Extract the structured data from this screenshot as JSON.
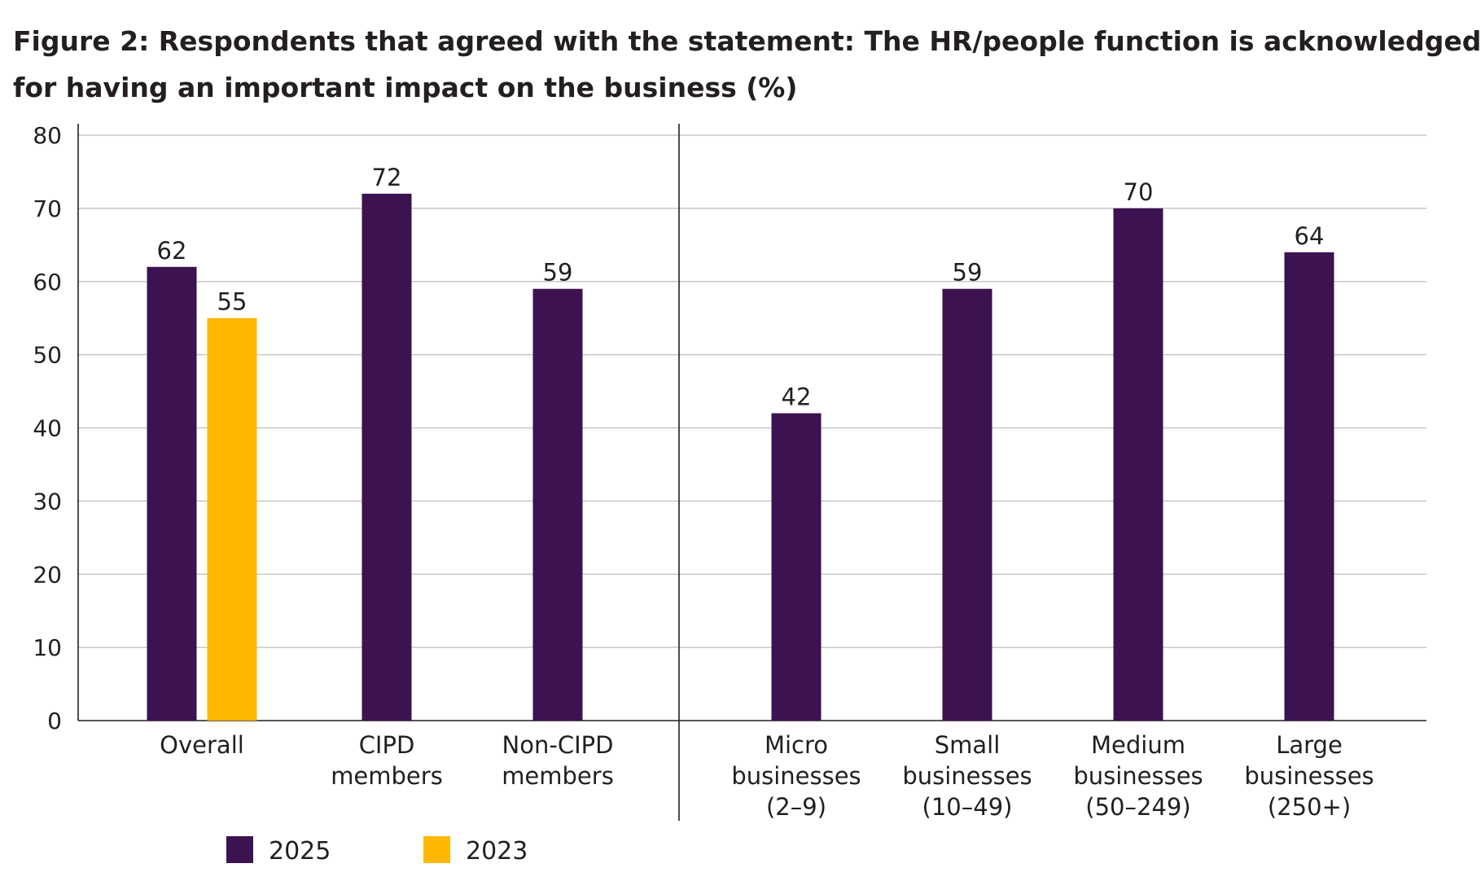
{
  "title_lines": [
    "Figure 2: Respondents that agreed with the statement: The HR/people function is acknowledged",
    "for having an important impact on the business (%)"
  ],
  "chart_data": {
    "type": "bar",
    "title": "Figure 2: Respondents that agreed with the statement: The HR/people function is acknowledged for having an important impact on the business (%)",
    "xlabel": "",
    "ylabel": "",
    "ylim": [
      0,
      80
    ],
    "yticks": [
      0,
      10,
      20,
      30,
      40,
      50,
      60,
      70,
      80
    ],
    "grid": true,
    "legend_position": "bottom-left",
    "categories": [
      [
        "Overall"
      ],
      [
        "CIPD",
        "members"
      ],
      [
        "Non-CIPD",
        "members"
      ],
      [
        "Micro",
        "businesses",
        "(2–9)"
      ],
      [
        "Small",
        "businesses",
        "(10–49)"
      ],
      [
        "Medium",
        "businesses",
        "(50–249)"
      ],
      [
        "Large",
        "businesses",
        "(250+)"
      ]
    ],
    "series": [
      {
        "name": "2025",
        "color": "#3c1250",
        "values": [
          62,
          72,
          59,
          42,
          59,
          70,
          64
        ]
      },
      {
        "name": "2023",
        "color": "#ffb800",
        "values": [
          55,
          null,
          null,
          null,
          null,
          null,
          null
        ]
      }
    ]
  }
}
